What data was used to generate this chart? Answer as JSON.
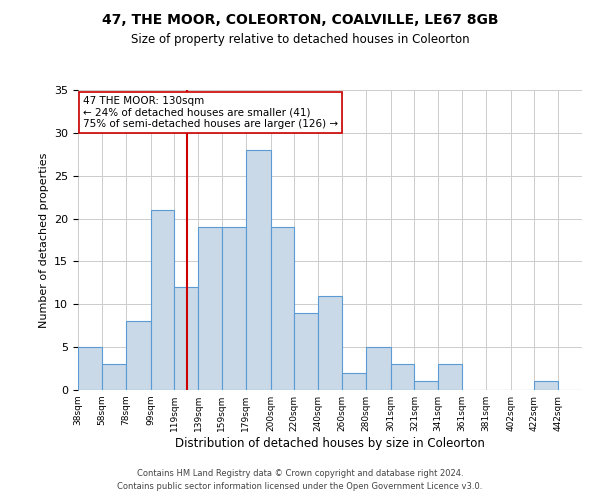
{
  "title": "47, THE MOOR, COLEORTON, COALVILLE, LE67 8GB",
  "subtitle": "Size of property relative to detached houses in Coleorton",
  "xlabel": "Distribution of detached houses by size in Coleorton",
  "ylabel": "Number of detached properties",
  "bin_labels": [
    "38sqm",
    "58sqm",
    "78sqm",
    "99sqm",
    "119sqm",
    "139sqm",
    "159sqm",
    "179sqm",
    "200sqm",
    "220sqm",
    "240sqm",
    "260sqm",
    "280sqm",
    "301sqm",
    "321sqm",
    "341sqm",
    "361sqm",
    "381sqm",
    "402sqm",
    "422sqm",
    "442sqm"
  ],
  "bin_counts": [
    5,
    3,
    8,
    21,
    12,
    19,
    19,
    28,
    19,
    9,
    11,
    2,
    5,
    3,
    1,
    3,
    0,
    0,
    0,
    1,
    0
  ],
  "bar_color": "#c9d9e8",
  "bar_edge_color": "#5b9bd5",
  "ylim": [
    0,
    35
  ],
  "yticks": [
    0,
    5,
    10,
    15,
    20,
    25,
    30,
    35
  ],
  "vline_x": 130,
  "vline_color": "#cc0000",
  "annotation_text": "47 THE MOOR: 130sqm\n← 24% of detached houses are smaller (41)\n75% of semi-detached houses are larger (126) →",
  "annotation_box_color": "#ffffff",
  "annotation_box_edge": "#cc0000",
  "footnote1": "Contains HM Land Registry data © Crown copyright and database right 2024.",
  "footnote2": "Contains public sector information licensed under the Open Government Licence v3.0.",
  "bin_edges": [
    38,
    58,
    78,
    99,
    119,
    139,
    159,
    179,
    200,
    220,
    240,
    260,
    280,
    301,
    321,
    341,
    361,
    381,
    402,
    422,
    442
  ]
}
